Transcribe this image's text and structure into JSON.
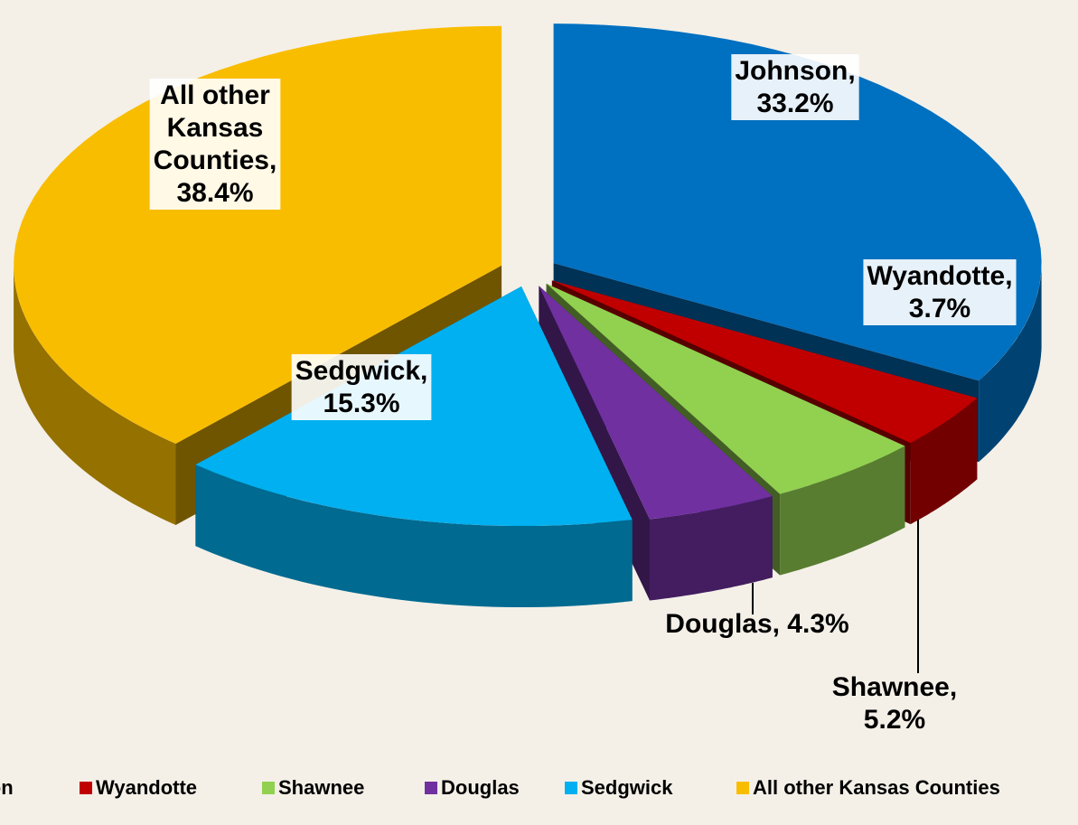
{
  "chart_data": {
    "type": "pie3d",
    "categories": [
      "Johnson",
      "Wyandotte",
      "Shawnee",
      "Douglas",
      "Sedgwick",
      "All other Kansas Counties"
    ],
    "values": [
      33.2,
      3.7,
      5.2,
      4.3,
      15.3,
      38.4
    ],
    "value_labels": [
      "Johnson,\n33.2%",
      "Wyandotte,\n3.7%",
      "Shawnee,\n5.2%",
      "Douglas, 4.3%",
      "Sedgwick,\n15.3%",
      "All other\nKansas\nCounties,\n38.4%"
    ],
    "colors": [
      "#0070c0",
      "#c00000",
      "#92d050",
      "#7030a0",
      "#00b0f0",
      "#f9bd00"
    ],
    "legend": "bottom"
  }
}
